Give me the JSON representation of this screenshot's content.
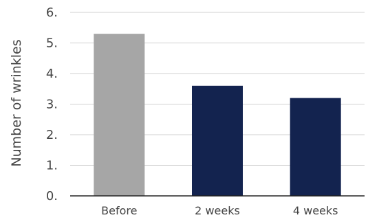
{
  "chart_data": {
    "type": "bar",
    "title": "",
    "xlabel": "",
    "ylabel": "Number of wrinkles",
    "categories": [
      "Before",
      "2 weeks",
      "4 weeks"
    ],
    "values": [
      5.3,
      3.6,
      3.2
    ],
    "bar_colors": [
      "#a6a6a6",
      "#13234f",
      "#13234f"
    ],
    "ylim": [
      0,
      6
    ],
    "yticks": [
      0,
      1,
      2,
      3,
      4,
      5,
      6
    ],
    "ytick_labels": [
      "0.",
      "1.",
      "2.",
      "3.",
      "4.",
      "5.",
      "6."
    ],
    "grid": true,
    "legend": "none"
  }
}
